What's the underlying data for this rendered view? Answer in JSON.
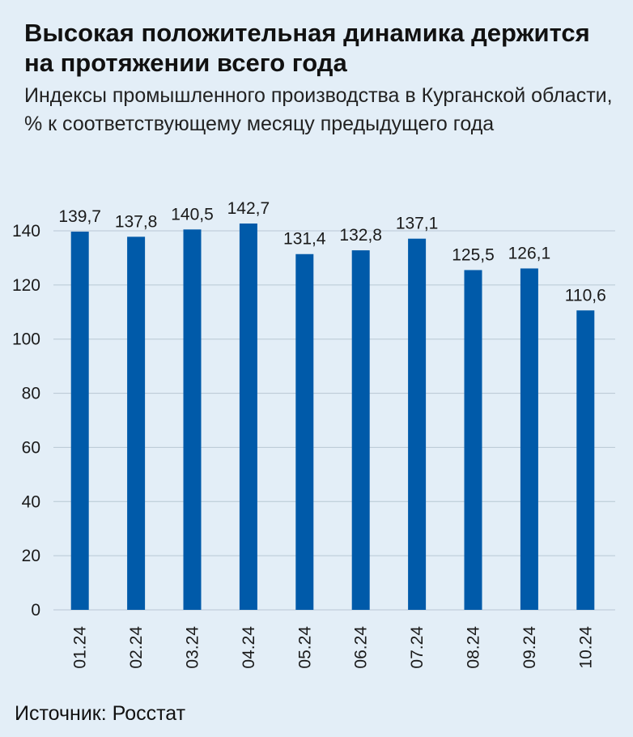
{
  "header": {
    "title": "Высокая положительная динамика держится на протяжении всего года",
    "subtitle": "Индексы промышленного производства в Курганской области, % к соответствующему месяцу предыдущего года"
  },
  "source": "Источник: Росстат",
  "colors": {
    "bar": "#005aa9",
    "grid": "#b8c7d4",
    "background": "#e3eef7"
  },
  "chart_data": {
    "type": "bar",
    "categories": [
      "01.24",
      "02.24",
      "03.24",
      "04.24",
      "05.24",
      "06.24",
      "07.24",
      "08.24",
      "09.24",
      "10.24"
    ],
    "values": [
      139.7,
      137.8,
      140.5,
      142.7,
      131.4,
      132.8,
      137.1,
      125.5,
      126.1,
      110.6
    ],
    "value_labels": [
      "139,7",
      "137,8",
      "140,5",
      "142,7",
      "131,4",
      "132,8",
      "137,1",
      "125,5",
      "126,1",
      "110,6"
    ],
    "yticks": [
      0,
      20,
      40,
      60,
      80,
      100,
      120,
      140
    ],
    "ylim": [
      0,
      140
    ],
    "grid": true,
    "xlabel": "",
    "ylabel": ""
  }
}
